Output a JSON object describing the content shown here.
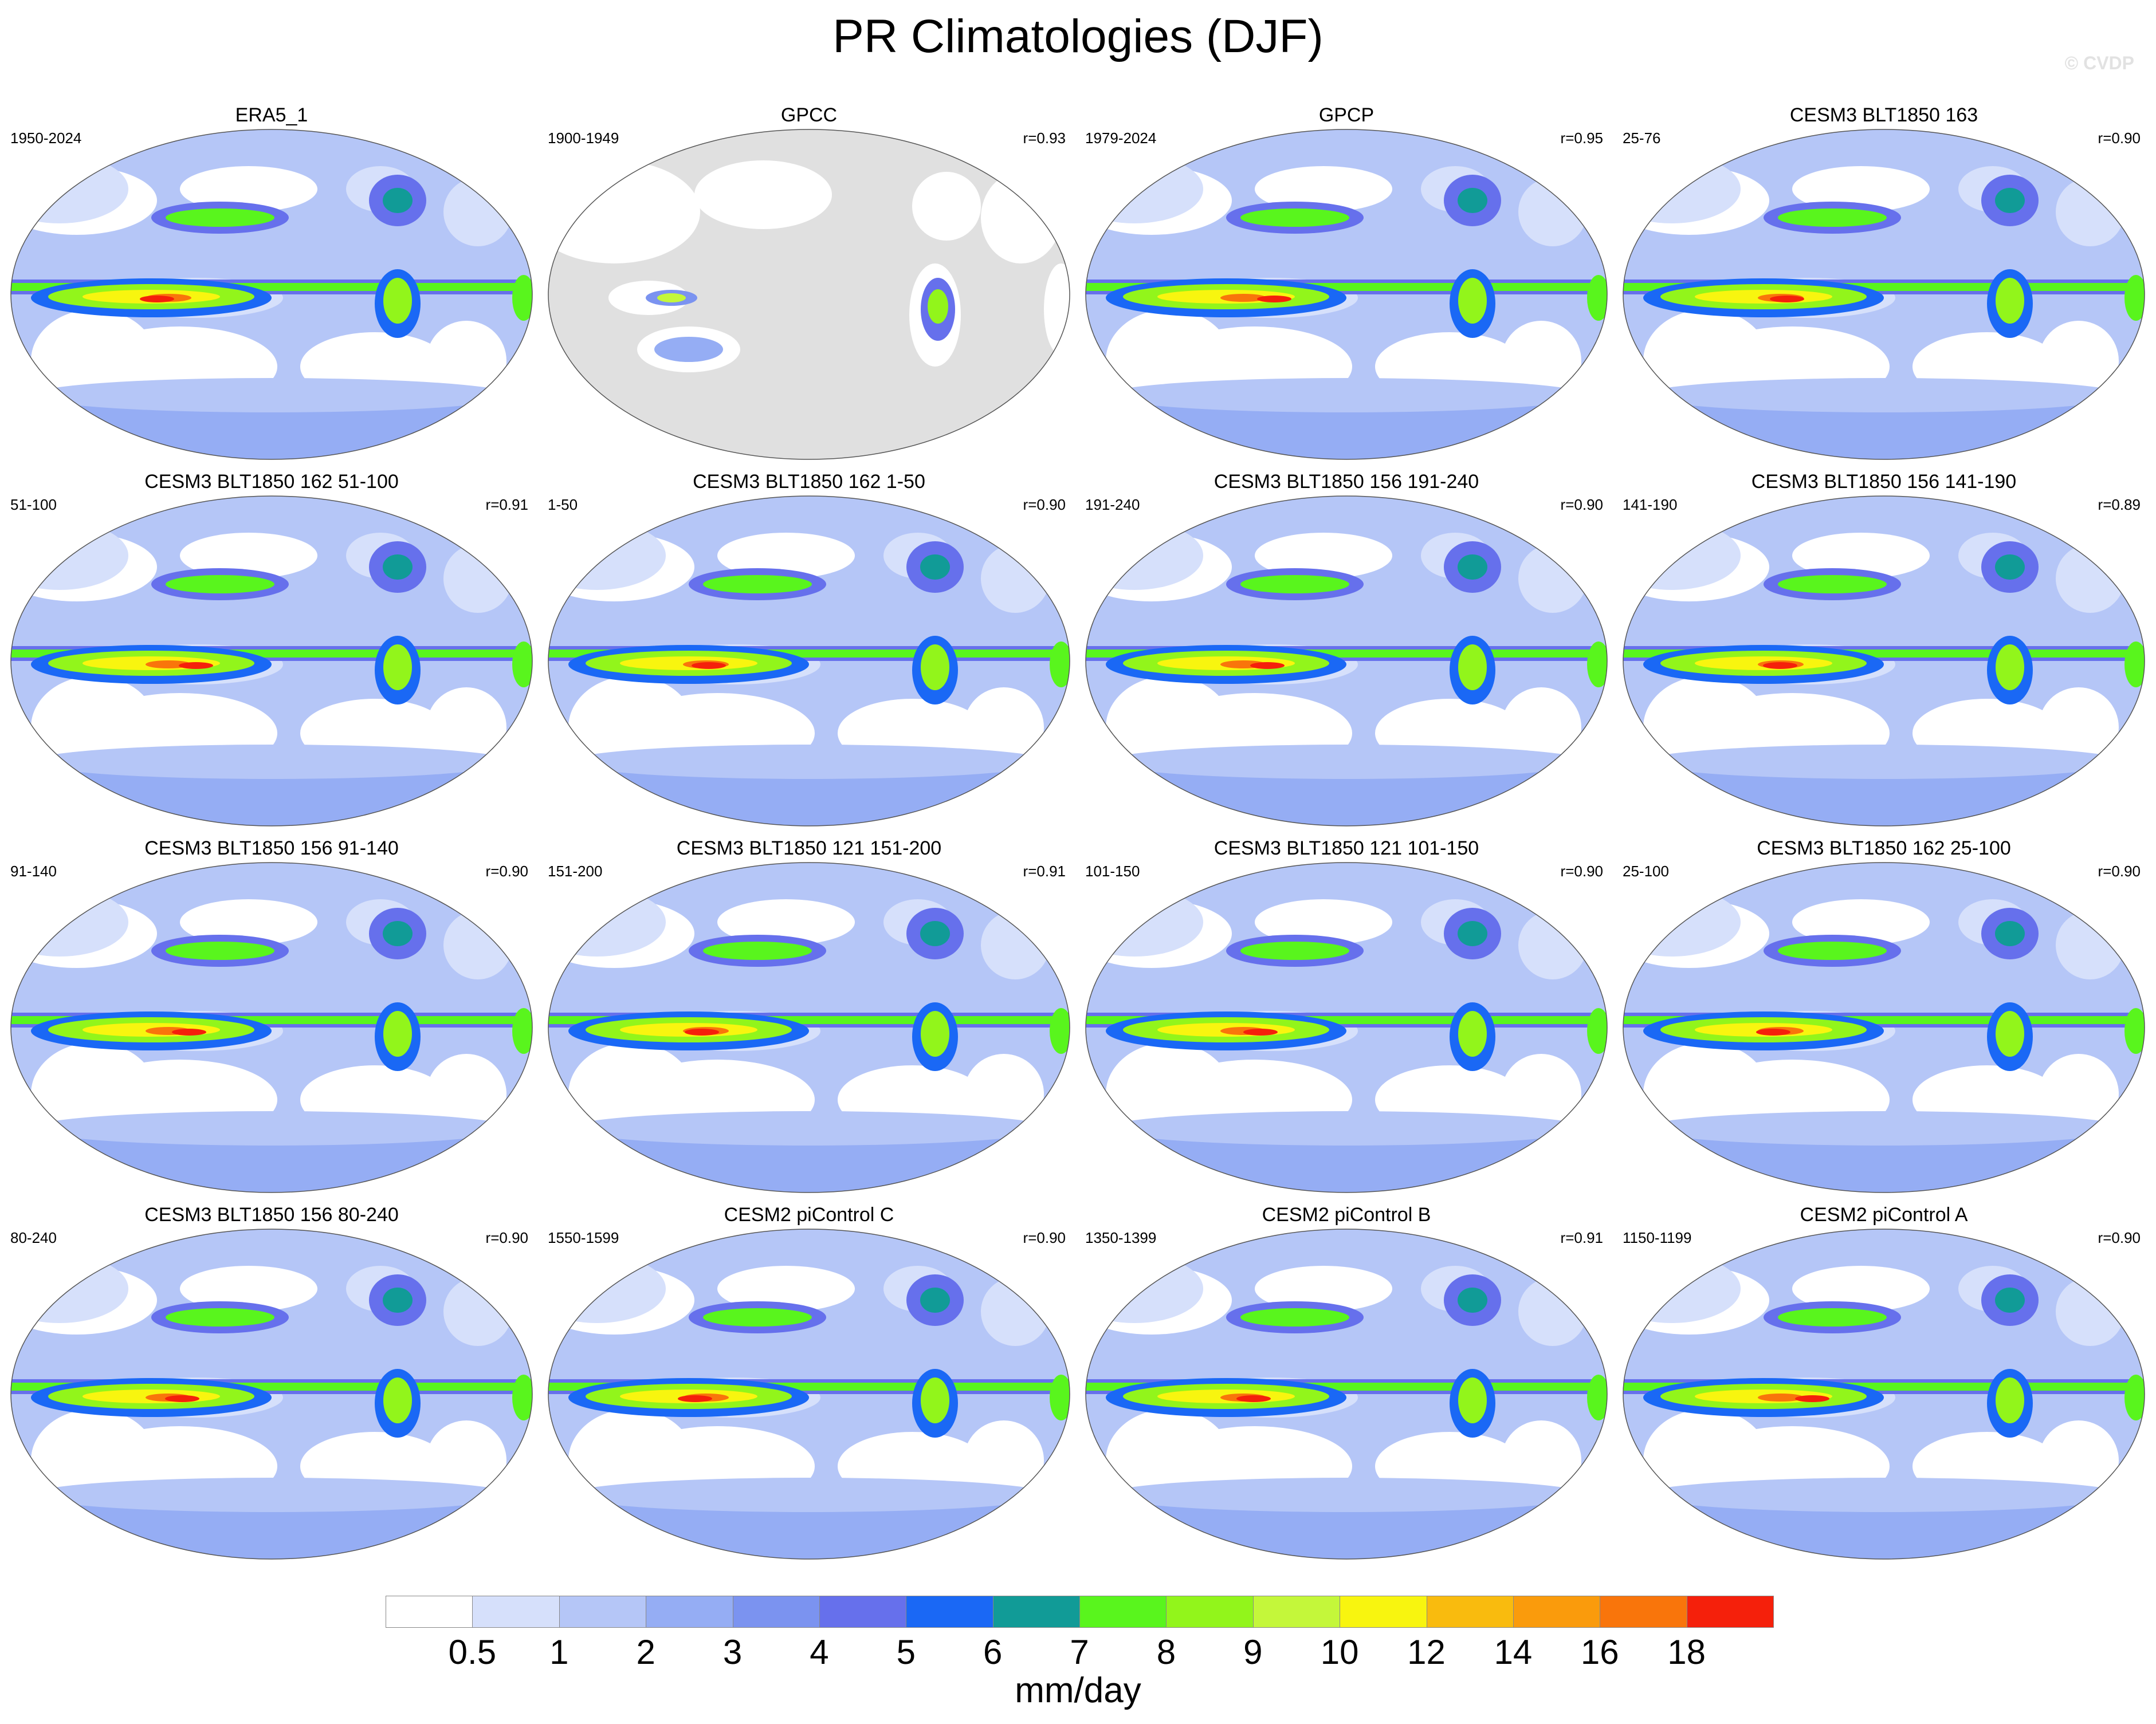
{
  "title": "PR Climatologies (DJF)",
  "watermark": "© CVDP",
  "panels": [
    {
      "title": "ERA5_1",
      "years": "1950-2024",
      "r": "",
      "kind": "model"
    },
    {
      "title": "GPCC",
      "years": "1900-1949",
      "r": "r=0.93",
      "kind": "land"
    },
    {
      "title": "GPCP",
      "years": "1979-2024",
      "r": "r=0.95",
      "kind": "model"
    },
    {
      "title": "CESM3 BLT1850 163",
      "years": "25-76",
      "r": "r=0.90",
      "kind": "model"
    },
    {
      "title": "CESM3 BLT1850 162 51-100",
      "years": "51-100",
      "r": "r=0.91",
      "kind": "model"
    },
    {
      "title": "CESM3 BLT1850 162 1-50",
      "years": "1-50",
      "r": "r=0.90",
      "kind": "model"
    },
    {
      "title": "CESM3 BLT1850 156 191-240",
      "years": "191-240",
      "r": "r=0.90",
      "kind": "model"
    },
    {
      "title": "CESM3 BLT1850 156 141-190",
      "years": "141-190",
      "r": "r=0.89",
      "kind": "model"
    },
    {
      "title": "CESM3 BLT1850 156 91-140",
      "years": "91-140",
      "r": "r=0.90",
      "kind": "model"
    },
    {
      "title": "CESM3 BLT1850 121 151-200",
      "years": "151-200",
      "r": "r=0.91",
      "kind": "model"
    },
    {
      "title": "CESM3 BLT1850 121 101-150",
      "years": "101-150",
      "r": "r=0.90",
      "kind": "model"
    },
    {
      "title": "CESM3 BLT1850 162 25-100",
      "years": "25-100",
      "r": "r=0.90",
      "kind": "model"
    },
    {
      "title": "CESM3 BLT1850 156 80-240",
      "years": "80-240",
      "r": "r=0.90",
      "kind": "model"
    },
    {
      "title": "CESM2 piControl C",
      "years": "1550-1599",
      "r": "r=0.90",
      "kind": "model"
    },
    {
      "title": "CESM2 piControl B",
      "years": "1350-1399",
      "r": "r=0.91",
      "kind": "model"
    },
    {
      "title": "CESM2 piControl A",
      "years": "1150-1199",
      "r": "r=0.90",
      "kind": "model"
    }
  ],
  "colorbar": {
    "unit": "mm/day",
    "tick_labels": [
      "0.5",
      "1",
      "2",
      "3",
      "4",
      "5",
      "6",
      "7",
      "8",
      "9",
      "10",
      "12",
      "14",
      "16",
      "18"
    ],
    "colors": [
      "#ffffff",
      "#d6e0fb",
      "#b5c6f7",
      "#95adf4",
      "#7b93f0",
      "#6670ec",
      "#1a68f5",
      "#119b97",
      "#59f51d",
      "#92f51b",
      "#c4f73a",
      "#f8f50f",
      "#f9bb0e",
      "#fa9b0c",
      "#f9750b",
      "#f5200b"
    ]
  }
}
